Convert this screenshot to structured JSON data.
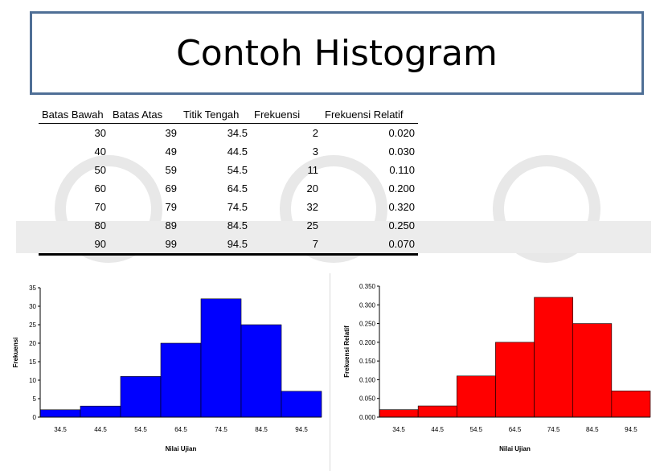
{
  "slide": {
    "title": "Contoh Histogram"
  },
  "table": {
    "headers": [
      "Batas Bawah",
      "Batas Atas",
      "Titik Tengah",
      "Frekuensi",
      "Frekuensi Relatif"
    ],
    "rows": [
      [
        "30",
        "39",
        "34.5",
        "2",
        "0.020"
      ],
      [
        "40",
        "49",
        "44.5",
        "3",
        "0.030"
      ],
      [
        "50",
        "59",
        "54.5",
        "11",
        "0.110"
      ],
      [
        "60",
        "69",
        "64.5",
        "20",
        "0.200"
      ],
      [
        "70",
        "79",
        "74.5",
        "32",
        "0.320"
      ],
      [
        "80",
        "89",
        "84.5",
        "25",
        "0.250"
      ],
      [
        "90",
        "99",
        "94.5",
        "7",
        "0.070"
      ]
    ]
  },
  "chart_data": [
    {
      "type": "bar",
      "categories": [
        "34.5",
        "44.5",
        "54.5",
        "64.5",
        "74.5",
        "84.5",
        "94.5"
      ],
      "values": [
        2,
        3,
        11,
        20,
        32,
        25,
        7
      ],
      "title": "",
      "xlabel": "Nilai Ujian",
      "ylabel": "Frekuensi",
      "ylim": [
        0,
        35
      ],
      "yticks": [
        "0",
        "5",
        "10",
        "15",
        "20",
        "25",
        "30",
        "35"
      ],
      "color": "#0000ff",
      "grid": false
    },
    {
      "type": "bar",
      "categories": [
        "34.5",
        "44.5",
        "54.5",
        "64.5",
        "74.5",
        "84.5",
        "94.5"
      ],
      "values": [
        0.02,
        0.03,
        0.11,
        0.2,
        0.32,
        0.25,
        0.07
      ],
      "title": "",
      "xlabel": "Nilai Ujian",
      "ylabel": "Frekuensi Relatif",
      "ylim": [
        0,
        0.35
      ],
      "yticks": [
        "0.000",
        "0.050",
        "0.100",
        "0.150",
        "0.200",
        "0.250",
        "0.300",
        "0.350"
      ],
      "color": "#ff0000",
      "grid": false
    }
  ]
}
